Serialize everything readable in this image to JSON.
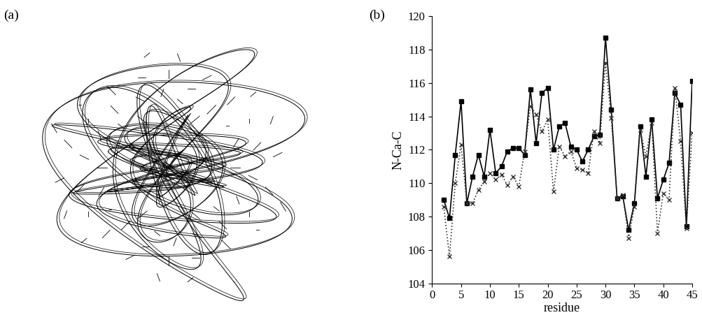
{
  "structure_panel": {
    "label": "(a)"
  },
  "chart_data": {
    "type": "line",
    "title": "(b)",
    "x_label": "residue",
    "y_label": "N-Ca-C",
    "x": [
      2,
      3,
      4,
      5,
      6,
      7,
      8,
      9,
      10,
      11,
      12,
      13,
      14,
      15,
      16,
      17,
      18,
      19,
      20,
      21,
      22,
      23,
      24,
      25,
      26,
      27,
      28,
      29,
      30,
      31,
      32,
      33,
      34,
      35,
      36,
      37,
      38,
      39,
      40,
      41,
      42,
      43,
      44,
      45
    ],
    "series": [
      {
        "color": "#000000",
        "marker": "square",
        "line_style": "solid",
        "values": [
          109.0,
          107.9,
          111.7,
          114.9,
          108.8,
          110.4,
          111.7,
          110.4,
          113.2,
          110.6,
          111.0,
          111.9,
          112.1,
          112.1,
          111.7,
          115.6,
          112.4,
          115.4,
          115.7,
          112.0,
          113.4,
          113.6,
          112.2,
          112.0,
          111.3,
          112.0,
          112.8,
          112.9,
          118.7,
          114.4,
          109.1,
          109.2,
          107.2,
          108.8,
          113.4,
          110.4,
          113.8,
          109.1,
          110.2,
          111.2,
          115.4,
          114.7,
          107.4,
          116.1
        ]
      },
      {
        "color": "#333333",
        "marker": "x",
        "line_style": "dotted",
        "values": [
          108.6,
          105.6,
          110.0,
          112.3,
          108.8,
          108.8,
          109.6,
          110.1,
          110.6,
          110.2,
          110.5,
          109.9,
          110.4,
          109.8,
          111.9,
          114.6,
          114.1,
          113.1,
          113.8,
          109.5,
          112.2,
          111.6,
          111.9,
          110.9,
          110.8,
          110.6,
          113.1,
          112.4,
          117.2,
          113.9,
          109.1,
          109.3,
          106.7,
          108.6,
          113.2,
          111.6,
          113.6,
          107.0,
          109.4,
          109.0,
          115.7,
          112.5,
          107.3,
          113.0
        ]
      }
    ],
    "xlim": [
      0,
      45
    ],
    "xticks": [
      0,
      5,
      10,
      15,
      20,
      25,
      30,
      35,
      40,
      45
    ],
    "ylim": [
      104,
      120
    ],
    "yticks": [
      104,
      106,
      108,
      110,
      112,
      114,
      116,
      118,
      120
    ],
    "grid": false
  }
}
